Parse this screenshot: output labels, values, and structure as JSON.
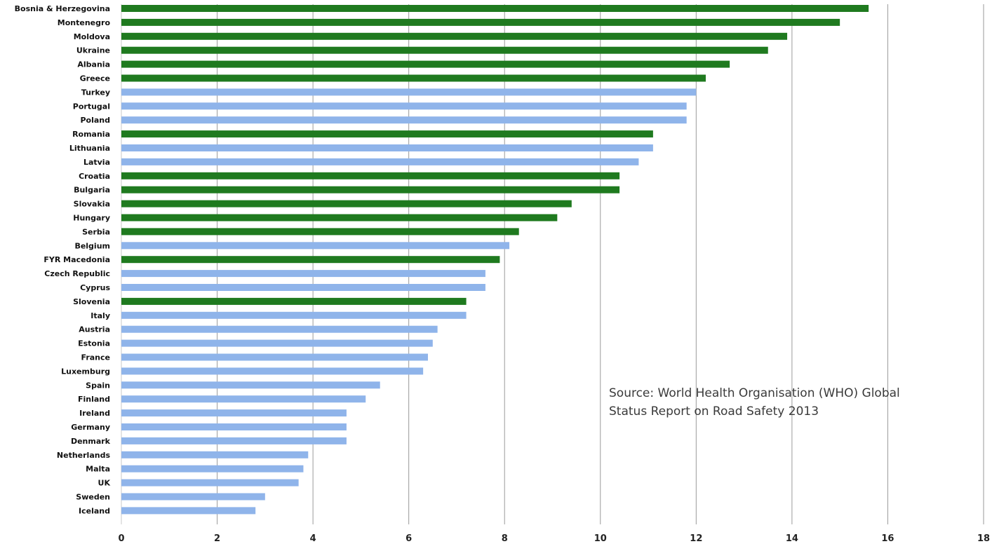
{
  "chart_data": {
    "type": "bar",
    "orientation": "horizontal",
    "title": "",
    "xlabel": "",
    "ylabel": "",
    "xlim": [
      0,
      18
    ],
    "x_ticks": [
      0,
      2,
      4,
      6,
      8,
      10,
      12,
      14,
      16,
      18
    ],
    "grid": "vertical",
    "legend": "none",
    "colors": {
      "highlight": "#1f7a1f",
      "default": "#8fb4ea",
      "grid": "#9a9a9a"
    },
    "categories": [
      "Bosnia & Herzegovina",
      "Montenegro",
      "Moldova",
      "Ukraine",
      "Albania",
      "Greece",
      "Turkey",
      "Portugal",
      "Poland",
      "Romania",
      "Lithuania",
      "Latvia",
      "Croatia",
      "Bulgaria",
      "Slovakia",
      "Hungary",
      "Serbia",
      "Belgium",
      "FYR Macedonia",
      "Czech Republic",
      "Cyprus",
      "Slovenia",
      "Italy",
      "Austria",
      "Estonia",
      "France",
      "Luxemburg",
      "Spain",
      "Finland",
      "Ireland",
      "Germany",
      "Denmark",
      "Netherlands",
      "Malta",
      "UK",
      "Sweden",
      "Iceland"
    ],
    "values": [
      15.6,
      15.0,
      13.9,
      13.5,
      12.7,
      12.2,
      12.0,
      11.8,
      11.8,
      11.1,
      11.1,
      10.8,
      10.4,
      10.4,
      9.4,
      9.1,
      8.3,
      8.1,
      7.9,
      7.6,
      7.6,
      7.2,
      7.2,
      6.6,
      6.5,
      6.4,
      6.3,
      5.4,
      5.1,
      4.7,
      4.7,
      4.7,
      3.9,
      3.8,
      3.7,
      3.0,
      2.8
    ],
    "highlighted": [
      true,
      true,
      true,
      true,
      true,
      true,
      false,
      false,
      false,
      true,
      false,
      false,
      true,
      true,
      true,
      true,
      true,
      false,
      true,
      false,
      false,
      true,
      false,
      false,
      false,
      false,
      false,
      false,
      false,
      false,
      false,
      false,
      false,
      false,
      false,
      false,
      false
    ]
  },
  "source_note": {
    "line1": "Source: World Health Organisation (WHO) Global",
    "line2": "Status Report on Road Safety 2013"
  }
}
